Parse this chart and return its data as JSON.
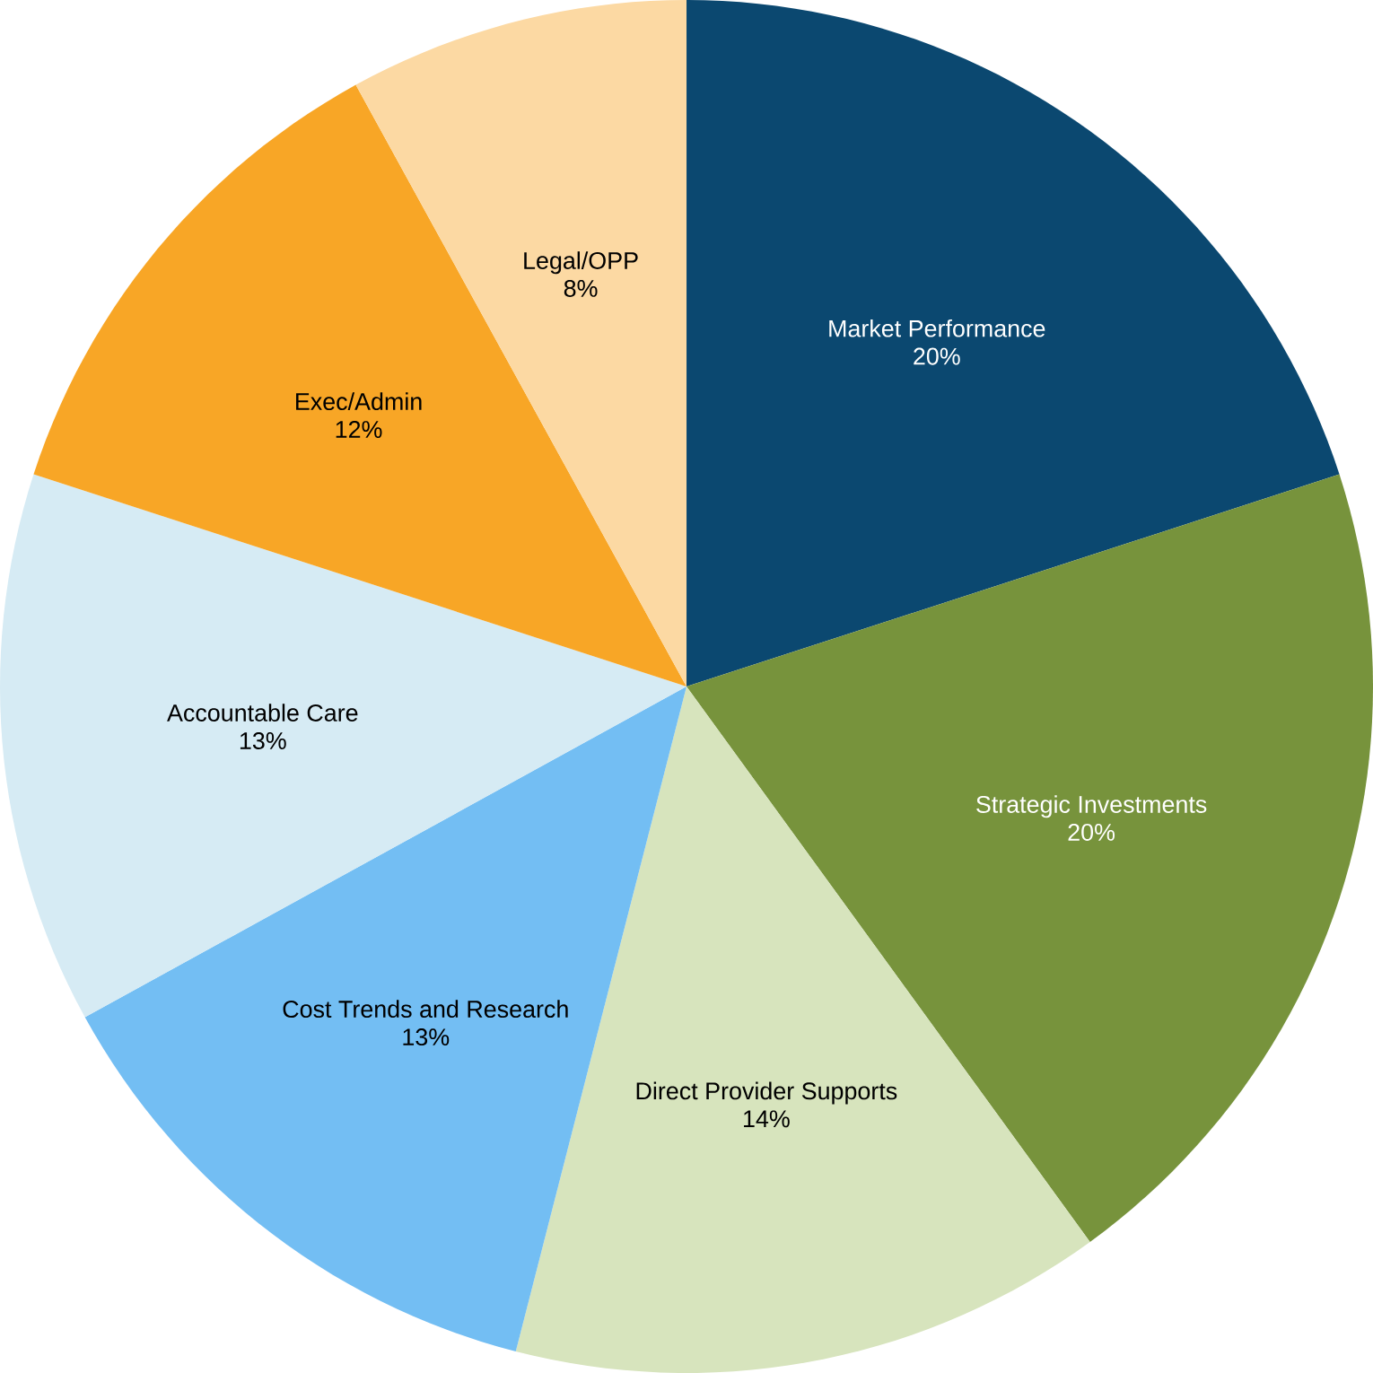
{
  "chart_data": {
    "type": "pie",
    "categories": [
      "Market Performance",
      "Strategic Investments",
      "Direct Provider Supports",
      "Cost Trends and Research",
      "Accountable Care",
      "Exec/Admin",
      "Legal/OPP"
    ],
    "values": [
      20,
      20,
      14,
      13,
      13,
      12,
      8
    ],
    "value_labels": [
      "20%",
      "20%",
      "14%",
      "13%",
      "13%",
      "12%",
      "8%"
    ],
    "colors": [
      "#0b4870",
      "#77933c",
      "#d7e4bd",
      "#73bef3",
      "#d6ebf4",
      "#f8a626",
      "#fcd9a3"
    ]
  }
}
